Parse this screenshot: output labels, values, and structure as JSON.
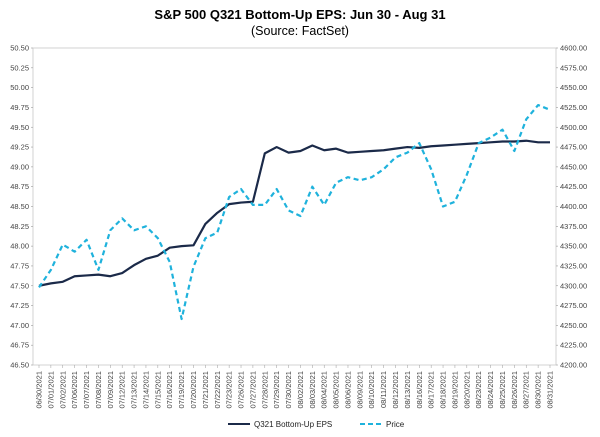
{
  "chart_data": {
    "type": "line",
    "title": "S&P 500 Q321 Bottom-Up EPS: Jun 30 - Aug 31",
    "subtitle": "(Source: FactSet)",
    "x": [
      "06/30/2021",
      "07/01/2021",
      "07/02/2021",
      "07/06/2021",
      "07/07/2021",
      "07/08/2021",
      "07/09/2021",
      "07/12/2021",
      "07/13/2021",
      "07/14/2021",
      "07/15/2021",
      "07/16/2021",
      "07/19/2021",
      "07/20/2021",
      "07/21/2021",
      "07/22/2021",
      "07/23/2021",
      "07/26/2021",
      "07/27/2021",
      "07/28/2021",
      "07/29/2021",
      "07/30/2021",
      "08/02/2021",
      "08/03/2021",
      "08/04/2021",
      "08/05/2021",
      "08/06/2021",
      "08/09/2021",
      "08/10/2021",
      "08/11/2021",
      "08/12/2021",
      "08/13/2021",
      "08/16/2021",
      "08/17/2021",
      "08/18/2021",
      "08/19/2021",
      "08/20/2021",
      "08/23/2021",
      "08/24/2021",
      "08/25/2021",
      "08/26/2021",
      "08/27/2021",
      "08/30/2021",
      "08/31/2021"
    ],
    "series": [
      {
        "name": "Q321 Bottom-Up EPS",
        "axis": "left",
        "color": "#1b2a49",
        "style": "solid",
        "values": [
          47.5,
          47.53,
          47.55,
          47.62,
          47.63,
          47.64,
          47.62,
          47.66,
          47.76,
          47.84,
          47.88,
          47.98,
          48.0,
          48.01,
          48.28,
          48.42,
          48.53,
          48.55,
          48.56,
          49.17,
          49.25,
          49.18,
          49.2,
          49.27,
          49.21,
          49.23,
          49.18,
          49.19,
          49.2,
          49.21,
          49.23,
          49.25,
          49.24,
          49.26,
          49.27,
          49.28,
          49.29,
          49.3,
          49.31,
          49.32,
          49.32,
          49.33,
          49.31,
          49.31
        ]
      },
      {
        "name": "Price",
        "axis": "right",
        "color": "#1fb2dc",
        "style": "dashed",
        "values": [
          4298,
          4320,
          4352,
          4343,
          4358,
          4320,
          4370,
          4385,
          4370,
          4375,
          4360,
          4330,
          4258,
          4324,
          4360,
          4367,
          4412,
          4422,
          4402,
          4402,
          4422,
          4395,
          4388,
          4425,
          4402,
          4430,
          4437,
          4433,
          4437,
          4447,
          4462,
          4468,
          4480,
          4447,
          4400,
          4406,
          4440,
          4480,
          4487,
          4497,
          4470,
          4510,
          4528,
          4522
        ]
      }
    ],
    "y_left": {
      "ylim": [
        46.5,
        50.5
      ],
      "step": 0.25,
      "decimals": 2,
      "prefix": ""
    },
    "y_right": {
      "ylim": [
        4200,
        4600
      ],
      "step": 25,
      "decimals": 2,
      "prefix": ""
    },
    "grid": false,
    "legend": "bottom-center"
  }
}
